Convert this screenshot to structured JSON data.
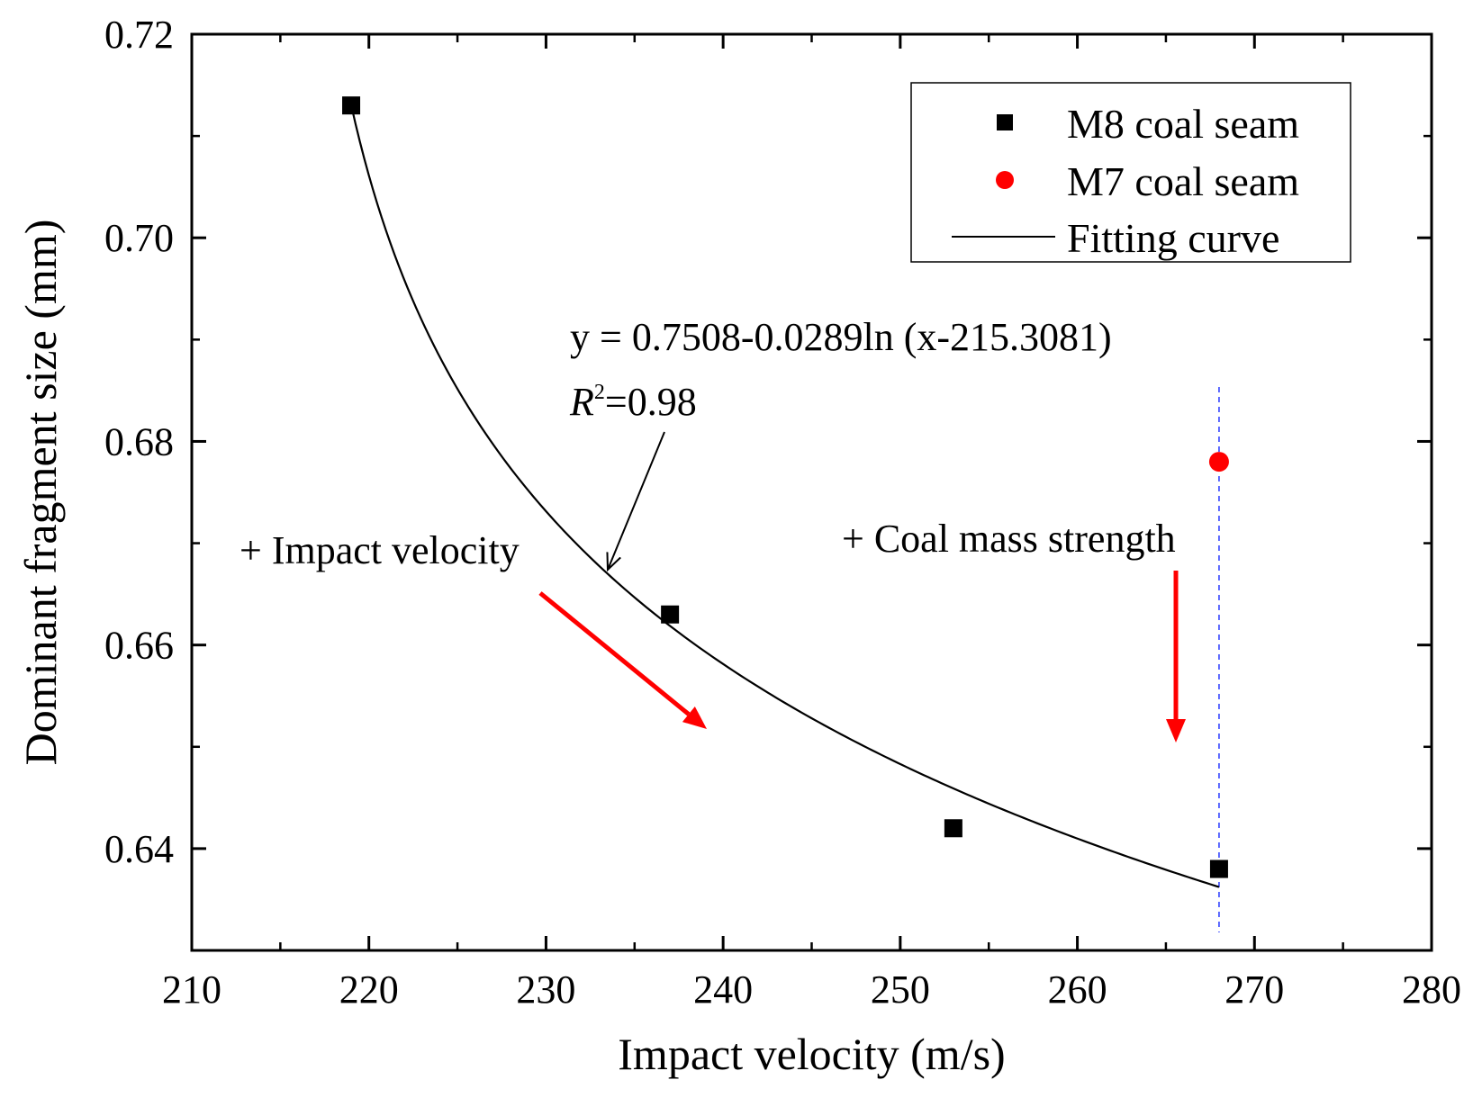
{
  "chart_data": {
    "type": "scatter",
    "xlabel": "Impact velocity (m/s)",
    "ylabel": "Dominant fragment size (mm)",
    "xlim": [
      210,
      280
    ],
    "ylim": [
      0.63,
      0.72
    ],
    "x_ticks": [
      210,
      220,
      230,
      240,
      250,
      260,
      270,
      280
    ],
    "x_tick_labels": [
      "210",
      "220",
      "230",
      "240",
      "250",
      "260",
      "270",
      "280"
    ],
    "y_ticks": [
      0.64,
      0.66,
      0.68,
      0.7,
      0.72
    ],
    "y_tick_labels": [
      "0.64",
      "0.66",
      "0.68",
      "0.70",
      "0.72"
    ],
    "grid": false,
    "legend_position": "top-right",
    "series": [
      {
        "name": "M8 coal seam",
        "marker": "square",
        "color": "#000000",
        "x": [
          219,
          237,
          253,
          268
        ],
        "y": [
          0.713,
          0.663,
          0.642,
          0.638
        ]
      },
      {
        "name": "M7 coal seam",
        "marker": "circle",
        "color": "#ff0000",
        "x": [
          268
        ],
        "y": [
          0.678
        ]
      },
      {
        "name": "Fitting curve",
        "marker": "line",
        "color": "#000000",
        "fit": {
          "a": 0.7508,
          "b": 0.0289,
          "c": 215.3081,
          "x_from": 219,
          "x_to": 268
        }
      }
    ],
    "equation": "y = 0.7508-0.0289ln (x-215.3081)",
    "r2_label": "R",
    "r2_sup": "2",
    "r2_value": "=0.98",
    "annotation_velocity": "+ Impact velocity",
    "annotation_strength": "+ Coal mass strength",
    "reference_line_x": 268,
    "arrow_color": "#ff0000",
    "reference_line_color": "#3344ff"
  }
}
